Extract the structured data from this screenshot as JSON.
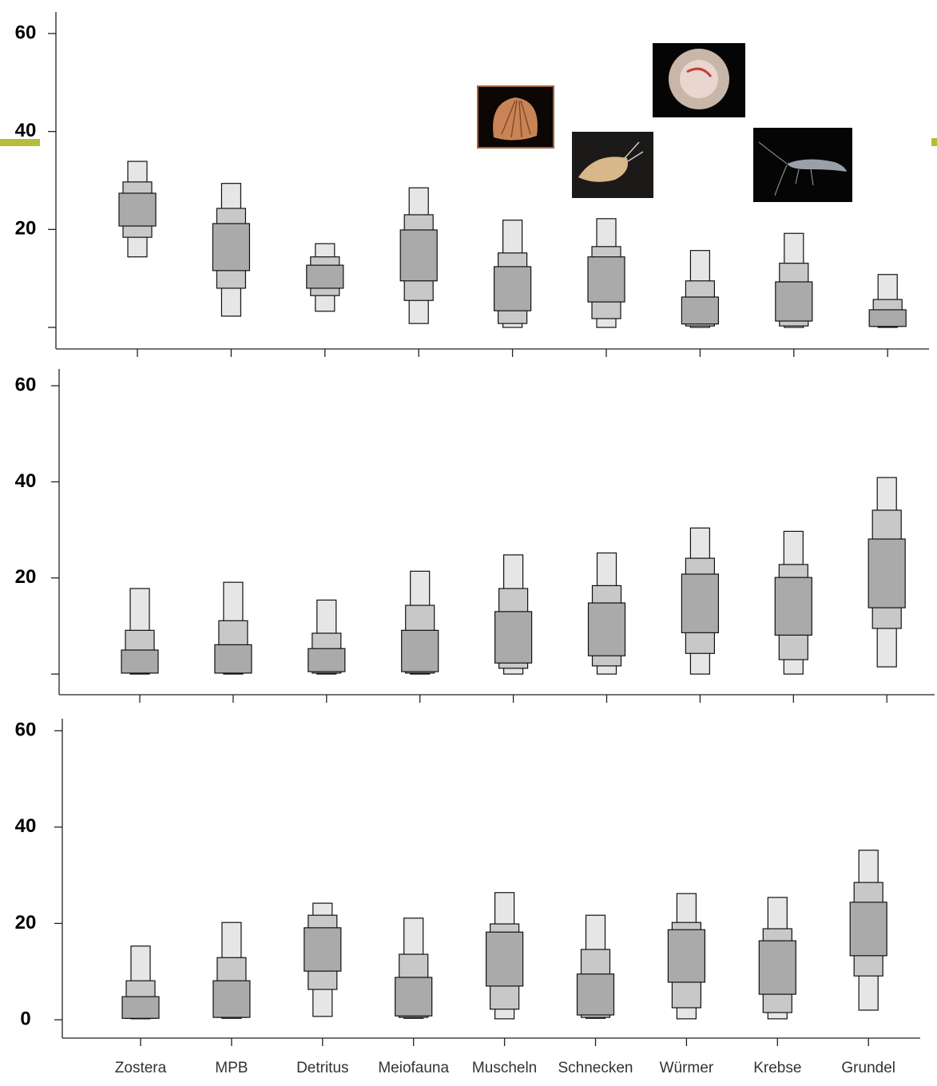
{
  "chart_data": [
    {
      "type": "interval",
      "values": [
        [
          14.4,
          18.4,
          20.7,
          27.4,
          29.7,
          33.9
        ],
        [
          2.3,
          8.0,
          11.6,
          21.2,
          24.3,
          29.4
        ],
        [
          3.3,
          6.5,
          8.0,
          12.7,
          14.4,
          17.1
        ],
        [
          0.8,
          5.5,
          9.5,
          19.9,
          23.0,
          28.5
        ],
        [
          0,
          0.8,
          3.4,
          12.4,
          15.2,
          21.9
        ],
        [
          0,
          1.8,
          5.2,
          14.4,
          16.5,
          22.2
        ],
        [
          0,
          0.3,
          0.7,
          6.2,
          9.5,
          15.7
        ],
        [
          0,
          0.3,
          1.3,
          9.3,
          13.1,
          19.2
        ],
        [
          0,
          0.2,
          0.2,
          3.6,
          5.7,
          10.8
        ]
      ],
      "colors": [
        "#e6e6e6",
        "#c8c8c8",
        "#aaaaaa"
      ],
      "ylim": [
        -4.4,
        64.4
      ],
      "yticks": [
        20,
        40,
        60
      ]
    },
    {
      "type": "interval",
      "values": [
        [
          0,
          0.2,
          0.2,
          5.0,
          9.1,
          17.8
        ],
        [
          0,
          0.2,
          0.2,
          6.1,
          11.1,
          19.1
        ],
        [
          0,
          0.2,
          0.5,
          5.3,
          8.5,
          15.4
        ],
        [
          0,
          0.2,
          0.5,
          9.1,
          14.3,
          21.4
        ],
        [
          0,
          1.2,
          2.3,
          13.0,
          17.8,
          24.8
        ],
        [
          0,
          1.7,
          3.8,
          14.8,
          18.4,
          25.2
        ],
        [
          0,
          4.3,
          8.6,
          20.8,
          24.1,
          30.4
        ],
        [
          0,
          3.0,
          8.1,
          20.1,
          22.8,
          29.7
        ],
        [
          1.5,
          9.5,
          13.8,
          28.1,
          34.1,
          40.9
        ]
      ],
      "colors": [
        "#e6e6e6",
        "#c8c8c8",
        "#aaaaaa"
      ],
      "ylim": [
        -4.3,
        63.5
      ],
      "yticks": [
        20,
        40,
        60
      ]
    },
    {
      "type": "interval",
      "categories": [
        "Zostera",
        "MPB",
        "Detritus",
        "Meiofauna",
        "Muscheln",
        "Schnecken",
        "Würmer",
        "Krebse",
        "Grundel"
      ],
      "values": [
        [
          0.2,
          0.3,
          0.3,
          4.8,
          8.1,
          15.3
        ],
        [
          0.3,
          0.5,
          0.5,
          8.1,
          12.9,
          20.2
        ],
        [
          0.7,
          6.3,
          10.1,
          19.1,
          21.7,
          24.2
        ],
        [
          0.3,
          0.5,
          0.8,
          8.8,
          13.6,
          21.1
        ],
        [
          0.2,
          2.2,
          7.0,
          18.2,
          19.9,
          26.4
        ],
        [
          0.3,
          0.5,
          1.0,
          9.5,
          14.6,
          21.7
        ],
        [
          0.2,
          2.5,
          7.8,
          18.7,
          20.2,
          26.2
        ],
        [
          0.2,
          1.5,
          5.3,
          16.4,
          18.9,
          25.4
        ],
        [
          2.0,
          9.1,
          13.3,
          24.4,
          28.5,
          35.2
        ]
      ],
      "colors": [
        "#e6e6e6",
        "#c8c8c8",
        "#aaaaaa"
      ],
      "ylim": [
        -3.8,
        62.5
      ],
      "yticks": [
        0,
        20,
        40,
        60
      ]
    }
  ]
}
